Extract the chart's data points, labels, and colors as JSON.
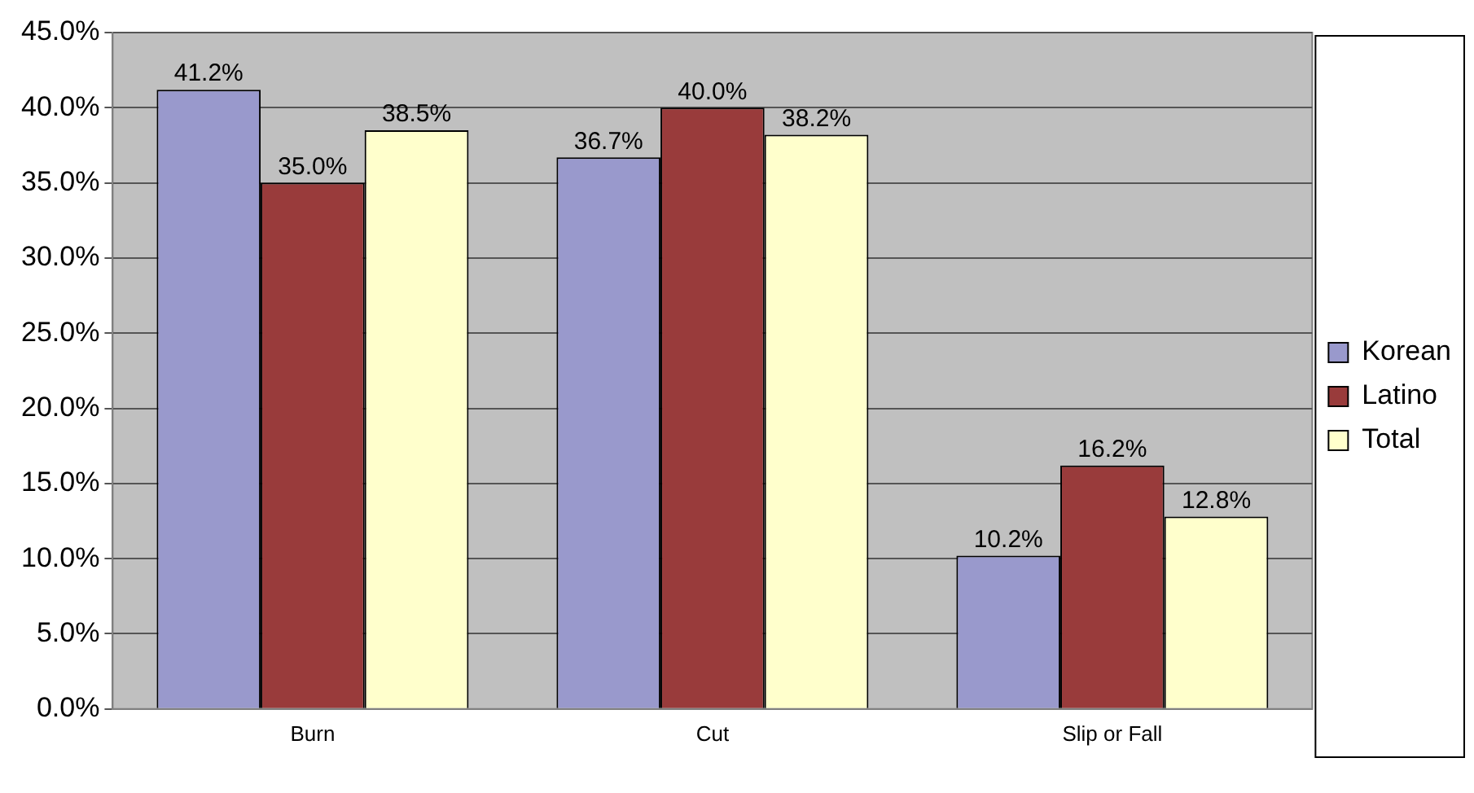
{
  "chart_data": {
    "type": "bar",
    "categories": [
      "Burn",
      "Cut",
      "Slip or Fall"
    ],
    "series": [
      {
        "name": "Korean",
        "color": "#9999cc",
        "values": [
          41.2,
          36.7,
          10.2
        ],
        "value_labels": [
          "41.2%",
          "36.7%",
          "10.2%"
        ]
      },
      {
        "name": "Latino",
        "color": "#993b3b",
        "values": [
          35.0,
          40.0,
          16.2
        ],
        "value_labels": [
          "35.0%",
          "40.0%",
          "16.2%"
        ]
      },
      {
        "name": "Total",
        "color": "#ffffcc",
        "values": [
          38.5,
          38.2,
          12.8
        ],
        "value_labels": [
          "38.5%",
          "38.2%",
          "12.8%"
        ]
      }
    ],
    "ylim": [
      0,
      45
    ],
    "yticks": [
      {
        "value": 0,
        "label": "0.0%"
      },
      {
        "value": 5,
        "label": "5.0%"
      },
      {
        "value": 10,
        "label": "10.0%"
      },
      {
        "value": 15,
        "label": "15.0%"
      },
      {
        "value": 20,
        "label": "20.0%"
      },
      {
        "value": 25,
        "label": "25.0%"
      },
      {
        "value": 30,
        "label": "30.0%"
      },
      {
        "value": 35,
        "label": "35.0%"
      },
      {
        "value": 40,
        "label": "40.0%"
      },
      {
        "value": 45,
        "label": "45.0%"
      }
    ],
    "grid": "y",
    "legend": "right"
  }
}
